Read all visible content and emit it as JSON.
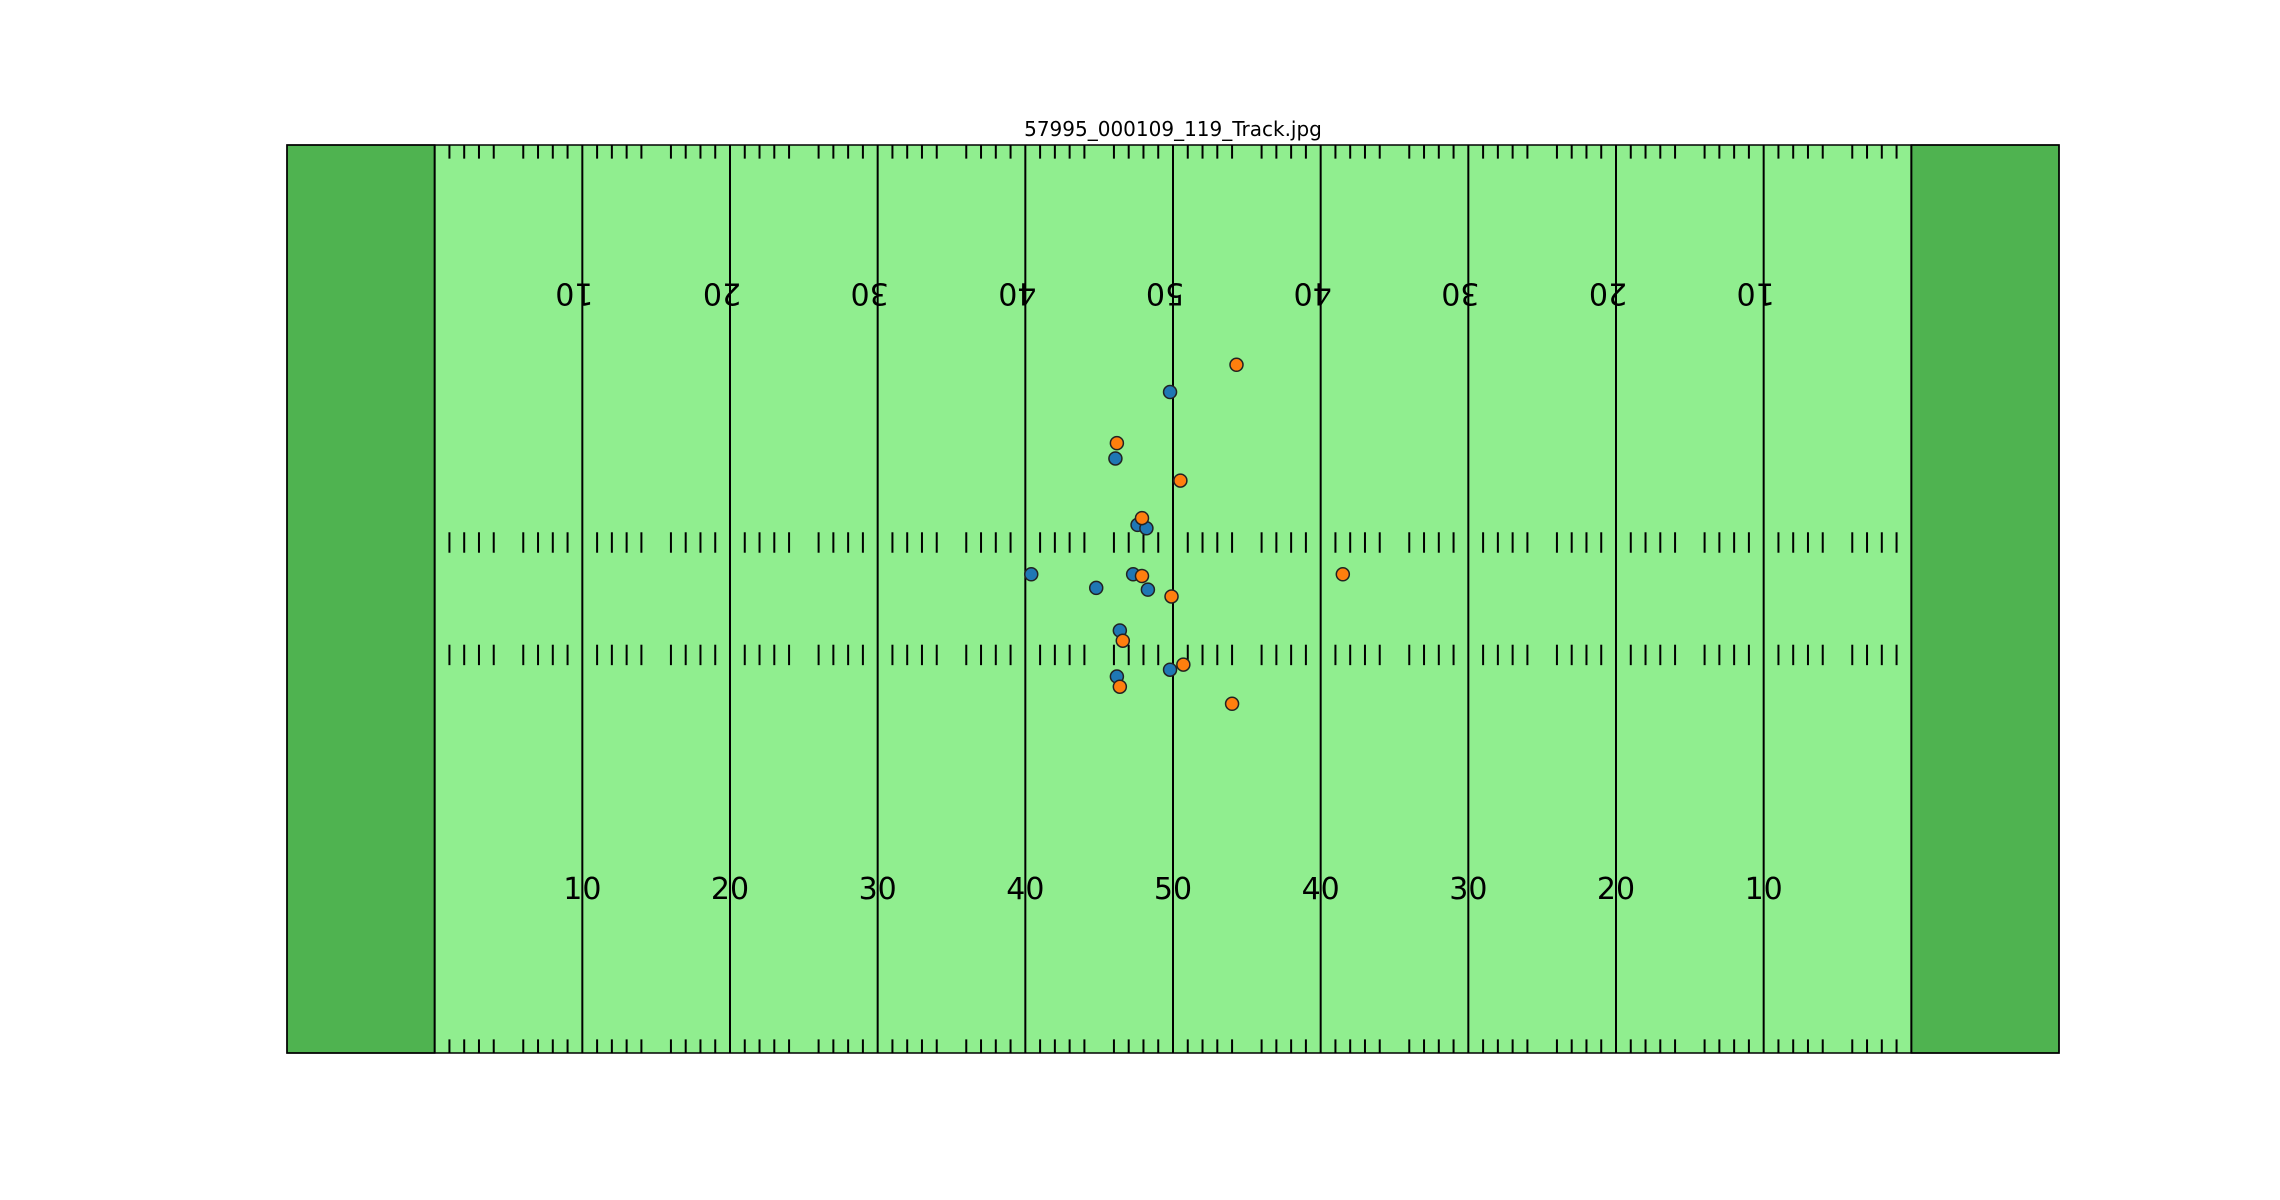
{
  "title": "57995_000109_119_Track.jpg",
  "colors": {
    "endzone": "#4fb350",
    "field": "#90ee8f",
    "line": "#000000",
    "team_a": "#1f77b4",
    "team_b": "#ff7f0e"
  },
  "chart_data": {
    "type": "scatter",
    "xlim": [
      0,
      120
    ],
    "ylim": [
      0,
      53.3
    ],
    "grid": false,
    "yard_lines": [
      10,
      20,
      30,
      40,
      50,
      60,
      70,
      80,
      90,
      100,
      110
    ],
    "yard_labels_bottom": [
      "10",
      "20",
      "30",
      "40",
      "50",
      "40",
      "30",
      "20",
      "10"
    ],
    "yard_labels_top": [
      "10",
      "20",
      "30",
      "40",
      "50",
      "40",
      "30",
      "20",
      "10"
    ],
    "series": [
      {
        "color": "#1f77b4",
        "points": [
          {
            "x": 59.8,
            "y": 38.8
          },
          {
            "x": 56.1,
            "y": 34.9
          },
          {
            "x": 57.6,
            "y": 31.0
          },
          {
            "x": 58.2,
            "y": 30.8
          },
          {
            "x": 50.4,
            "y": 28.1
          },
          {
            "x": 54.8,
            "y": 27.3
          },
          {
            "x": 57.3,
            "y": 28.1
          },
          {
            "x": 58.3,
            "y": 27.2
          },
          {
            "x": 56.4,
            "y": 24.8
          },
          {
            "x": 56.2,
            "y": 22.1
          },
          {
            "x": 59.8,
            "y": 22.5
          }
        ]
      },
      {
        "color": "#ff7f0e",
        "points": [
          {
            "x": 64.3,
            "y": 40.4
          },
          {
            "x": 56.2,
            "y": 35.8
          },
          {
            "x": 60.5,
            "y": 33.6
          },
          {
            "x": 57.9,
            "y": 31.4
          },
          {
            "x": 57.9,
            "y": 28.0
          },
          {
            "x": 59.9,
            "y": 26.8
          },
          {
            "x": 71.5,
            "y": 28.1
          },
          {
            "x": 56.6,
            "y": 24.2
          },
          {
            "x": 60.7,
            "y": 22.8
          },
          {
            "x": 56.4,
            "y": 21.5
          },
          {
            "x": 64.0,
            "y": 20.5
          }
        ]
      }
    ]
  }
}
